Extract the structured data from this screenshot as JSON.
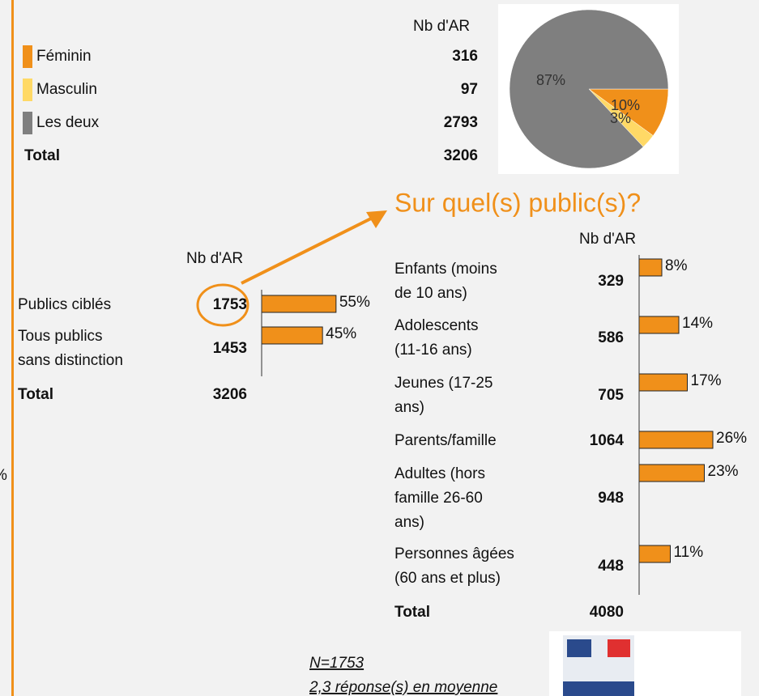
{
  "gender": {
    "header": "Nb d'AR",
    "rows": [
      {
        "label": "Féminin",
        "count": 316,
        "color": "#f0901a",
        "pct": 10,
        "pct_label": "10%"
      },
      {
        "label": "Masculin",
        "count": 97,
        "color": "#ffd966",
        "pct": 3,
        "pct_label": "3%"
      },
      {
        "label": "Les deux",
        "count": 2793,
        "color": "#7f7f7f",
        "pct": 87,
        "pct_label": "87%"
      }
    ],
    "total_label": "Total",
    "total": 3206
  },
  "title": "Sur quel(s) public(s)?",
  "targeting": {
    "header": "Nb d'AR",
    "color": "#f0901a",
    "rows": [
      {
        "label_lines": [
          "Publics ciblés"
        ],
        "count": 1753,
        "pct": 55,
        "pct_label": "55%"
      },
      {
        "label_lines": [
          "Tous publics",
          "sans distinction"
        ],
        "count": 1453,
        "pct": 45,
        "pct_label": "45%"
      }
    ],
    "total_label": "Total",
    "total": 3206
  },
  "publics": {
    "header": "Nb d'AR",
    "color": "#f0901a",
    "rows": [
      {
        "label_lines": [
          "Enfants (moins",
          "de 10 ans)"
        ],
        "count": 329,
        "pct": 8,
        "pct_label": "8%"
      },
      {
        "label_lines": [
          "Adolescents",
          "(11-16 ans)"
        ],
        "count": 586,
        "pct": 14,
        "pct_label": "14%"
      },
      {
        "label_lines": [
          "Jeunes (17-25",
          "ans)"
        ],
        "count": 705,
        "pct": 17,
        "pct_label": "17%"
      },
      {
        "label_lines": [
          "Parents/famille"
        ],
        "count": 1064,
        "pct": 26,
        "pct_label": "26%"
      },
      {
        "label_lines": [
          "Adultes (hors",
          "famille 26-60",
          "ans)"
        ],
        "count": 948,
        "pct": 23,
        "pct_label": "23%"
      },
      {
        "label_lines": [
          "Personnes âgées",
          "(60 ans et plus)"
        ],
        "count": 448,
        "pct": 11,
        "pct_label": "11%"
      }
    ],
    "total_label": "Total",
    "total": 4080
  },
  "footnote": [
    "N=1753",
    "2,3 réponse(s) en moyenne"
  ],
  "edge_text": "%"
}
